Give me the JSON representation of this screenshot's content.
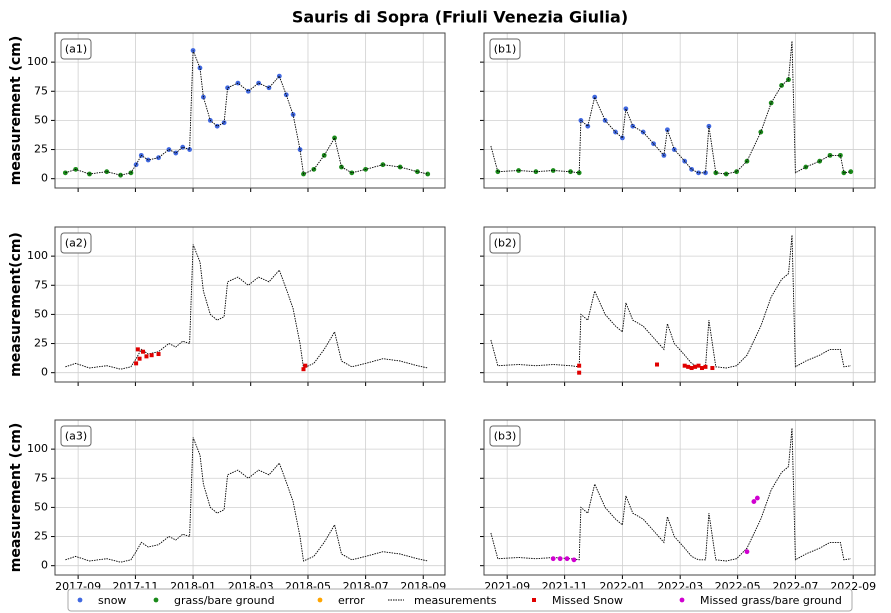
{
  "title": "Sauris di Sopra (Friuli Venezia Giulia)",
  "legend": [
    {
      "name": "snow",
      "color": "#4169e1",
      "marker": "dot"
    },
    {
      "name": "grass/bare ground",
      "color": "#1a8a1a",
      "marker": "dot"
    },
    {
      "name": "error",
      "color": "#ffa500",
      "marker": "dot"
    },
    {
      "name": "measurements",
      "color": "#000000",
      "marker": "dotted-line"
    },
    {
      "name": "Missed Snow",
      "color": "#e00000",
      "marker": "square"
    },
    {
      "name": "Missed grass/bare ground",
      "color": "#d000d0",
      "marker": "dot"
    }
  ],
  "chart_data": [
    {
      "type": "scatter",
      "label": "(a1)",
      "ylabel": "measurement (cm)",
      "grid": true,
      "xlim": [
        2017.6,
        2018.73
      ],
      "ylim": [
        -8,
        125
      ],
      "yticks": [
        0,
        25,
        50,
        75,
        100
      ],
      "xticks": [
        2017.667,
        2017.833,
        2018.0,
        2018.167,
        2018.333,
        2018.5,
        2018.667
      ],
      "series": [
        {
          "name": "snow",
          "color": "#4169e1",
          "style": "dots",
          "x": [
            2017.835,
            2017.85,
            2017.87,
            2017.9,
            2017.93,
            2017.95,
            2017.97,
            2017.99,
            2018.0,
            2018.02,
            2018.03,
            2018.05,
            2018.07,
            2018.09,
            2018.1,
            2018.13,
            2018.16,
            2018.19,
            2018.22,
            2018.25,
            2018.27,
            2018.29,
            2018.31
          ],
          "values": [
            12,
            20,
            16,
            18,
            25,
            22,
            27,
            25,
            110,
            95,
            70,
            50,
            45,
            48,
            78,
            82,
            75,
            82,
            78,
            88,
            72,
            55,
            25
          ]
        },
        {
          "name": "grass/bare ground",
          "color": "#1a8a1a",
          "style": "dots",
          "x": [
            2017.63,
            2017.66,
            2017.7,
            2017.75,
            2017.79,
            2017.82,
            2018.32,
            2018.35,
            2018.38,
            2018.41,
            2018.43,
            2018.46,
            2018.5,
            2018.55,
            2018.6,
            2018.65,
            2018.68
          ],
          "values": [
            5,
            8,
            4,
            6,
            3,
            5,
            4,
            8,
            20,
            35,
            10,
            5,
            8,
            12,
            10,
            6,
            4
          ]
        },
        {
          "name": "measurements",
          "color": "#000000",
          "style": "line",
          "x": [
            2017.63,
            2017.66,
            2017.7,
            2017.75,
            2017.79,
            2017.82,
            2017.835,
            2017.85,
            2017.87,
            2017.9,
            2017.93,
            2017.95,
            2017.97,
            2017.99,
            2018.0,
            2018.02,
            2018.03,
            2018.05,
            2018.07,
            2018.09,
            2018.1,
            2018.13,
            2018.16,
            2018.19,
            2018.22,
            2018.25,
            2018.27,
            2018.29,
            2018.31,
            2018.32,
            2018.35,
            2018.38,
            2018.41,
            2018.43,
            2018.46,
            2018.5,
            2018.55,
            2018.6,
            2018.65,
            2018.68
          ],
          "values": [
            5,
            8,
            4,
            6,
            3,
            5,
            12,
            20,
            16,
            18,
            25,
            22,
            27,
            25,
            110,
            95,
            70,
            50,
            45,
            48,
            78,
            82,
            75,
            82,
            78,
            88,
            72,
            55,
            25,
            4,
            8,
            20,
            35,
            10,
            5,
            8,
            12,
            10,
            6,
            4
          ]
        }
      ]
    },
    {
      "type": "scatter",
      "label": "(b1)",
      "grid": true,
      "xlim": [
        2021.6,
        2022.73
      ],
      "ylim": [
        -8,
        125
      ],
      "yticks": [
        0,
        25,
        50,
        75,
        100
      ],
      "xticks": [
        2021.667,
        2021.833,
        2022.0,
        2022.167,
        2022.333,
        2022.5,
        2022.667
      ],
      "series": [
        {
          "name": "snow",
          "color": "#4169e1",
          "style": "dots",
          "x": [
            2021.88,
            2021.9,
            2021.92,
            2021.95,
            2021.98,
            2022.0,
            2022.01,
            2022.03,
            2022.06,
            2022.09,
            2022.12,
            2022.13,
            2022.15,
            2022.18,
            2022.2,
            2022.22,
            2022.24,
            2022.25
          ],
          "values": [
            50,
            45,
            70,
            50,
            40,
            35,
            60,
            45,
            40,
            30,
            20,
            42,
            25,
            15,
            8,
            5,
            5,
            45
          ]
        },
        {
          "name": "grass/bare ground",
          "color": "#1a8a1a",
          "style": "dots",
          "x": [
            2021.64,
            2021.7,
            2021.75,
            2021.8,
            2021.85,
            2021.875,
            2022.27,
            2022.3,
            2022.33,
            2022.36,
            2022.4,
            2022.43,
            2022.46,
            2022.48,
            2022.53,
            2022.57,
            2022.6,
            2022.63,
            2022.64,
            2022.66
          ],
          "values": [
            6,
            7,
            6,
            7,
            6,
            5,
            5,
            4,
            6,
            15,
            40,
            65,
            80,
            85,
            10,
            15,
            20,
            20,
            5,
            6
          ]
        },
        {
          "name": "measurements",
          "color": "#000000",
          "style": "line",
          "x": [
            2021.62,
            2021.64,
            2021.7,
            2021.75,
            2021.8,
            2021.85,
            2021.875,
            2021.88,
            2021.9,
            2021.92,
            2021.95,
            2021.98,
            2022.0,
            2022.01,
            2022.03,
            2022.06,
            2022.09,
            2022.12,
            2022.13,
            2022.15,
            2022.18,
            2022.2,
            2022.22,
            2022.24,
            2022.25,
            2022.27,
            2022.3,
            2022.33,
            2022.36,
            2022.4,
            2022.43,
            2022.46,
            2022.48,
            2022.49,
            2022.5,
            2022.53,
            2022.57,
            2022.6,
            2022.63,
            2022.64,
            2022.66
          ],
          "values": [
            28,
            6,
            7,
            6,
            7,
            6,
            5,
            50,
            45,
            70,
            50,
            40,
            35,
            60,
            45,
            40,
            30,
            20,
            42,
            25,
            15,
            8,
            5,
            5,
            45,
            5,
            4,
            6,
            15,
            40,
            65,
            80,
            85,
            118,
            5,
            10,
            15,
            20,
            20,
            5,
            6
          ]
        }
      ]
    },
    {
      "type": "scatter",
      "label": "(a2)",
      "ylabel": "measurement(cm)",
      "grid": true,
      "xlim": [
        2017.6,
        2018.73
      ],
      "ylim": [
        -8,
        125
      ],
      "yticks": [
        0,
        25,
        50,
        75,
        100
      ],
      "xticks": [
        2017.667,
        2017.833,
        2018.0,
        2018.167,
        2018.333,
        2018.5,
        2018.667
      ],
      "series": [
        {
          "name": "measurements",
          "color": "#000000",
          "style": "line",
          "x": [
            2017.63,
            2017.66,
            2017.7,
            2017.75,
            2017.79,
            2017.82,
            2017.835,
            2017.85,
            2017.87,
            2017.9,
            2017.93,
            2017.95,
            2017.97,
            2017.99,
            2018.0,
            2018.02,
            2018.03,
            2018.05,
            2018.07,
            2018.09,
            2018.1,
            2018.13,
            2018.16,
            2018.19,
            2018.22,
            2018.25,
            2018.27,
            2018.29,
            2018.31,
            2018.32,
            2018.35,
            2018.38,
            2018.41,
            2018.43,
            2018.46,
            2018.5,
            2018.55,
            2018.6,
            2018.65,
            2018.68
          ],
          "values": [
            5,
            8,
            4,
            6,
            3,
            5,
            12,
            20,
            16,
            18,
            25,
            22,
            27,
            25,
            110,
            95,
            70,
            50,
            45,
            48,
            78,
            82,
            75,
            82,
            78,
            88,
            72,
            55,
            25,
            4,
            8,
            20,
            35,
            10,
            5,
            8,
            12,
            10,
            6,
            4
          ]
        },
        {
          "name": "Missed Snow",
          "color": "#e00000",
          "style": "squares",
          "x": [
            2017.835,
            2017.84,
            2017.845,
            2017.855,
            2017.865,
            2017.88,
            2017.9,
            2018.32,
            2018.325
          ],
          "values": [
            8,
            20,
            12,
            18,
            14,
            15,
            16,
            3,
            6
          ]
        }
      ]
    },
    {
      "type": "scatter",
      "label": "(b2)",
      "grid": true,
      "xlim": [
        2021.6,
        2022.73
      ],
      "ylim": [
        -8,
        125
      ],
      "yticks": [
        0,
        25,
        50,
        75,
        100
      ],
      "xticks": [
        2021.667,
        2021.833,
        2022.0,
        2022.167,
        2022.333,
        2022.5,
        2022.667
      ],
      "series": [
        {
          "name": "measurements",
          "color": "#000000",
          "style": "line",
          "x": [
            2021.62,
            2021.64,
            2021.7,
            2021.75,
            2021.8,
            2021.85,
            2021.875,
            2021.88,
            2021.9,
            2021.92,
            2021.95,
            2021.98,
            2022.0,
            2022.01,
            2022.03,
            2022.06,
            2022.09,
            2022.12,
            2022.13,
            2022.15,
            2022.18,
            2022.2,
            2022.22,
            2022.24,
            2022.25,
            2022.27,
            2022.3,
            2022.33,
            2022.36,
            2022.4,
            2022.43,
            2022.46,
            2022.48,
            2022.49,
            2022.5,
            2022.53,
            2022.57,
            2022.6,
            2022.63,
            2022.64,
            2022.66
          ],
          "values": [
            28,
            6,
            7,
            6,
            7,
            6,
            5,
            50,
            45,
            70,
            50,
            40,
            35,
            60,
            45,
            40,
            30,
            20,
            42,
            25,
            15,
            8,
            5,
            5,
            45,
            5,
            4,
            6,
            15,
            40,
            65,
            80,
            85,
            118,
            5,
            10,
            15,
            20,
            20,
            5,
            6
          ]
        },
        {
          "name": "Missed Snow",
          "color": "#e00000",
          "style": "squares",
          "x": [
            2021.875,
            2021.875,
            2022.1,
            2022.18,
            2022.19,
            2022.2,
            2022.21,
            2022.22,
            2022.23,
            2022.24,
            2022.26
          ],
          "values": [
            0,
            6,
            7,
            6,
            5,
            4,
            5,
            6,
            4,
            5,
            4
          ]
        }
      ]
    },
    {
      "type": "scatter",
      "label": "(a3)",
      "ylabel": "measurement (cm)",
      "grid": true,
      "xlim": [
        2017.6,
        2018.73
      ],
      "ylim": [
        -8,
        125
      ],
      "yticks": [
        0,
        25,
        50,
        75,
        100
      ],
      "xticks": [
        {
          "value": 2017.667,
          "label": "2017-09"
        },
        {
          "value": 2017.833,
          "label": "2017-11"
        },
        {
          "value": 2018.0,
          "label": "2018-01"
        },
        {
          "value": 2018.167,
          "label": "2018-03"
        },
        {
          "value": 2018.333,
          "label": "2018-05"
        },
        {
          "value": 2018.5,
          "label": "2018-07"
        },
        {
          "value": 2018.667,
          "label": "2018-09"
        }
      ],
      "series": [
        {
          "name": "measurements",
          "color": "#000000",
          "style": "line",
          "x": [
            2017.63,
            2017.66,
            2017.7,
            2017.75,
            2017.79,
            2017.82,
            2017.835,
            2017.85,
            2017.87,
            2017.9,
            2017.93,
            2017.95,
            2017.97,
            2017.99,
            2018.0,
            2018.02,
            2018.03,
            2018.05,
            2018.07,
            2018.09,
            2018.1,
            2018.13,
            2018.16,
            2018.19,
            2018.22,
            2018.25,
            2018.27,
            2018.29,
            2018.31,
            2018.32,
            2018.35,
            2018.38,
            2018.41,
            2018.43,
            2018.46,
            2018.5,
            2018.55,
            2018.6,
            2018.65,
            2018.68
          ],
          "values": [
            5,
            8,
            4,
            6,
            3,
            5,
            12,
            20,
            16,
            18,
            25,
            22,
            27,
            25,
            110,
            95,
            70,
            50,
            45,
            48,
            78,
            82,
            75,
            82,
            78,
            88,
            72,
            55,
            25,
            4,
            8,
            20,
            35,
            10,
            5,
            8,
            12,
            10,
            6,
            4
          ]
        }
      ]
    },
    {
      "type": "scatter",
      "label": "(b3)",
      "grid": true,
      "xlim": [
        2021.6,
        2022.73
      ],
      "ylim": [
        -8,
        125
      ],
      "yticks": [
        0,
        25,
        50,
        75,
        100
      ],
      "xticks": [
        {
          "value": 2021.667,
          "label": "2021-09"
        },
        {
          "value": 2021.833,
          "label": "2021-11"
        },
        {
          "value": 2022.0,
          "label": "2022-01"
        },
        {
          "value": 2022.167,
          "label": "2022-03"
        },
        {
          "value": 2022.333,
          "label": "2022-05"
        },
        {
          "value": 2022.5,
          "label": "2022-07"
        },
        {
          "value": 2022.667,
          "label": "2022-09"
        }
      ],
      "series": [
        {
          "name": "measurements",
          "color": "#000000",
          "style": "line",
          "x": [
            2021.62,
            2021.64,
            2021.7,
            2021.75,
            2021.8,
            2021.85,
            2021.875,
            2021.88,
            2021.9,
            2021.92,
            2021.95,
            2021.98,
            2022.0,
            2022.01,
            2022.03,
            2022.06,
            2022.09,
            2022.12,
            2022.13,
            2022.15,
            2022.18,
            2022.2,
            2022.22,
            2022.24,
            2022.25,
            2022.27,
            2022.3,
            2022.33,
            2022.36,
            2022.4,
            2022.43,
            2022.46,
            2022.48,
            2022.49,
            2022.5,
            2022.53,
            2022.57,
            2022.6,
            2022.63,
            2022.64,
            2022.66
          ],
          "values": [
            28,
            6,
            7,
            6,
            7,
            6,
            5,
            50,
            45,
            70,
            50,
            40,
            35,
            60,
            45,
            40,
            30,
            20,
            42,
            25,
            15,
            8,
            5,
            5,
            45,
            5,
            4,
            6,
            15,
            40,
            65,
            80,
            85,
            118,
            5,
            10,
            15,
            20,
            20,
            5,
            6
          ]
        },
        {
          "name": "Missed grass/bare ground",
          "color": "#d000d0",
          "style": "dots",
          "x": [
            2021.8,
            2021.82,
            2021.84,
            2021.86,
            2022.36,
            2022.38,
            2022.39
          ],
          "values": [
            6,
            6,
            6,
            5,
            12,
            55,
            58
          ]
        }
      ]
    }
  ]
}
